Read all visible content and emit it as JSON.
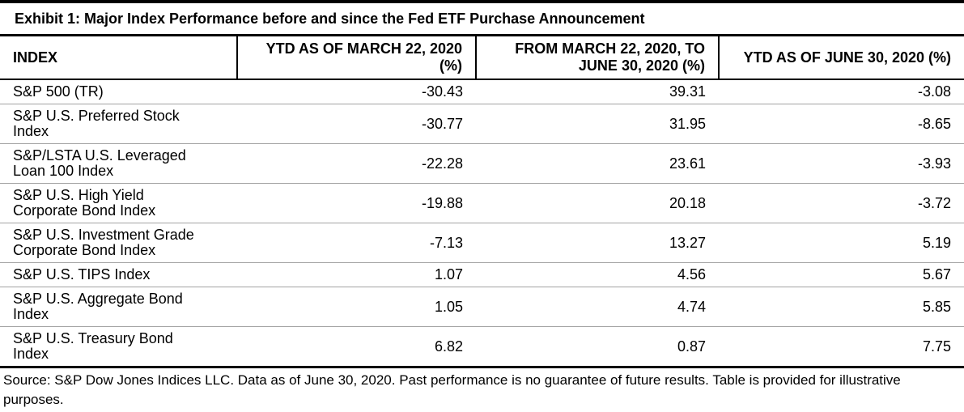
{
  "title": "Exhibit 1: Major Index Performance before and since the Fed ETF Purchase Announcement",
  "chart_data": {
    "type": "table",
    "title": "Exhibit 1: Major Index Performance before and since the Fed ETF Purchase Announcement",
    "columns": [
      "INDEX",
      "YTD AS OF MARCH 22, 2020 (%)",
      "FROM MARCH 22, 2020, TO JUNE 30, 2020 (%)",
      "YTD AS OF JUNE 30, 2020 (%)"
    ],
    "rows": [
      {
        "name": "S&P 500 (TR)",
        "ytd_mar22": "-30.43",
        "mar22_jun30": "39.31",
        "ytd_jun30": "-3.08"
      },
      {
        "name": "S&P U.S. Preferred Stock Index",
        "ytd_mar22": "-30.77",
        "mar22_jun30": "31.95",
        "ytd_jun30": "-8.65"
      },
      {
        "name": "S&P/LSTA U.S. Leveraged Loan 100 Index",
        "ytd_mar22": "-22.28",
        "mar22_jun30": "23.61",
        "ytd_jun30": "-3.93"
      },
      {
        "name": "S&P U.S. High Yield Corporate Bond Index",
        "ytd_mar22": "-19.88",
        "mar22_jun30": "20.18",
        "ytd_jun30": "-3.72"
      },
      {
        "name": "S&P U.S. Investment Grade Corporate Bond Index",
        "ytd_mar22": "-7.13",
        "mar22_jun30": "13.27",
        "ytd_jun30": "5.19"
      },
      {
        "name": "S&P U.S. TIPS Index",
        "ytd_mar22": "1.07",
        "mar22_jun30": "4.56",
        "ytd_jun30": "5.67"
      },
      {
        "name": "S&P U.S. Aggregate Bond Index",
        "ytd_mar22": "1.05",
        "mar22_jun30": "4.74",
        "ytd_jun30": "5.85"
      },
      {
        "name": "S&P U.S. Treasury Bond Index",
        "ytd_mar22": "6.82",
        "mar22_jun30": "0.87",
        "ytd_jun30": "7.75"
      }
    ],
    "source_note": "Source: S&P Dow Jones Indices LLC. Data as of June 30, 2020. Past performance is no guarantee of future results. Table is provided for illustrative purposes."
  },
  "colors": {
    "text": "#000000",
    "border_heavy": "#000000",
    "row_separator": "#a3a3a3",
    "background": "#ffffff"
  }
}
